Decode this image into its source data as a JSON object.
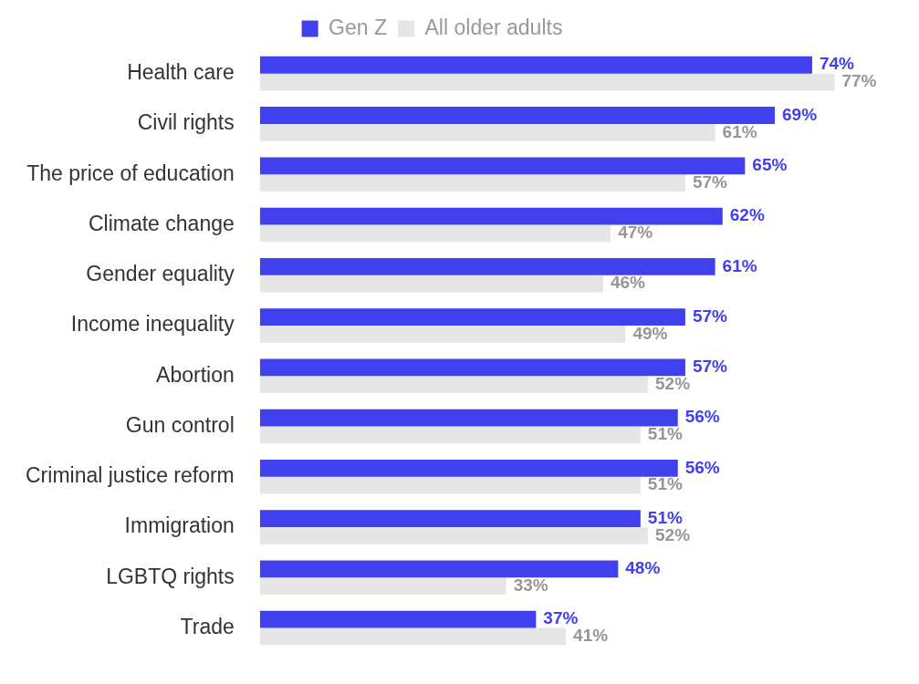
{
  "chart_data": {
    "type": "bar",
    "orientation": "horizontal",
    "legend": "top",
    "tick_labels": "y",
    "categories": [
      "Health care",
      "Civil rights",
      "The price of education",
      "Climate change",
      "Gender equality",
      "Income inequality",
      "Abortion",
      "Gun control",
      "Criminal justice reform",
      "Immigration",
      "LGBTQ rights",
      "Trade"
    ],
    "series": [
      {
        "name": "Gen Z",
        "color": "#4040ee",
        "values": [
          74,
          69,
          65,
          62,
          61,
          57,
          57,
          56,
          56,
          51,
          48,
          37
        ],
        "value_labels": [
          "74%",
          "69%",
          "65%",
          "62%",
          "61%",
          "57%",
          "57%",
          "56%",
          "56%",
          "51%",
          "48%",
          "37%"
        ]
      },
      {
        "name": "All older adults",
        "color": "#e6e6e6",
        "values": [
          77,
          61,
          57,
          47,
          46,
          49,
          52,
          51,
          51,
          52,
          33,
          41
        ],
        "value_labels": [
          "77%",
          "61%",
          "57%",
          "47%",
          "46%",
          "49%",
          "52%",
          "51%",
          "51%",
          "52%",
          "33%",
          "41%"
        ]
      }
    ]
  }
}
